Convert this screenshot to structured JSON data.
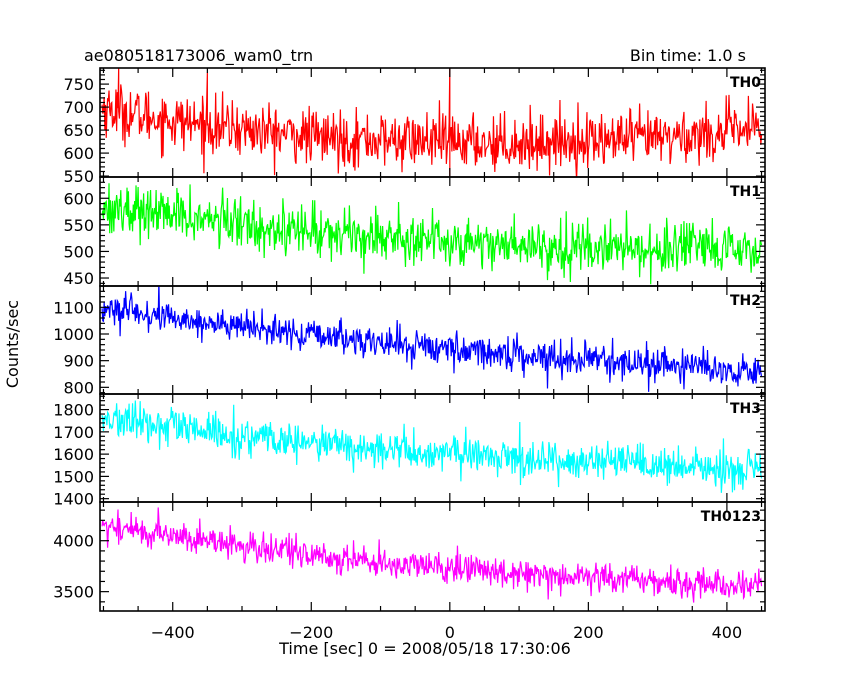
{
  "header": {
    "title": "ae080518173006_wam0_trn",
    "bin_time": "Bin time: 1.0 s"
  },
  "chart_data": {
    "type": "line",
    "xlabel": "Time [sec] 0 = 2008/05/18 17:30:06",
    "ylabel": "Counts/sec",
    "xlim": [
      -505,
      455
    ],
    "xticks": [
      -400,
      -200,
      0,
      200,
      400
    ],
    "grid": false,
    "panels": [
      {
        "name": "TH0",
        "color": "#ff0000",
        "ylim": [
          548,
          785
        ],
        "yticks": [
          550,
          600,
          650,
          700,
          750
        ],
        "trend": [
          [
            -505,
            700
          ],
          [
            -450,
            682
          ],
          [
            -350,
            660
          ],
          [
            -200,
            635
          ],
          [
            -100,
            628
          ],
          [
            0,
            625
          ],
          [
            100,
            622
          ],
          [
            200,
            628
          ],
          [
            300,
            632
          ],
          [
            400,
            645
          ],
          [
            450,
            652
          ]
        ],
        "noise": 30,
        "spikes": [
          [
            -478,
            790
          ],
          [
            -350,
            775
          ],
          [
            0,
            790
          ],
          [
            0,
            548
          ]
        ]
      },
      {
        "name": "TH1",
        "color": "#00ff00",
        "ylim": [
          435,
          640
        ],
        "yticks": [
          450,
          500,
          550,
          600
        ],
        "trend": [
          [
            -505,
            585
          ],
          [
            -400,
            568
          ],
          [
            -300,
            552
          ],
          [
            -200,
            538
          ],
          [
            -100,
            530
          ],
          [
            0,
            520
          ],
          [
            100,
            512
          ],
          [
            200,
            508
          ],
          [
            300,
            505
          ],
          [
            400,
            500
          ],
          [
            450,
            500
          ]
        ],
        "noise": 24,
        "spikes": []
      },
      {
        "name": "TH2",
        "color": "#0000ff",
        "ylim": [
          775,
          1180
        ],
        "yticks": [
          800,
          900,
          1000,
          1100
        ],
        "trend": [
          [
            -505,
            1095
          ],
          [
            -400,
            1060
          ],
          [
            -300,
            1025
          ],
          [
            -200,
            995
          ],
          [
            -100,
            968
          ],
          [
            0,
            945
          ],
          [
            100,
            922
          ],
          [
            200,
            905
          ],
          [
            300,
            885
          ],
          [
            400,
            868
          ],
          [
            450,
            860
          ]
        ],
        "noise": 30,
        "spikes": []
      },
      {
        "name": "TH3",
        "color": "#00ffff",
        "ylim": [
          1385,
          1870
        ],
        "yticks": [
          1400,
          1500,
          1600,
          1700,
          1800
        ],
        "trend": [
          [
            -505,
            1760
          ],
          [
            -400,
            1720
          ],
          [
            -300,
            1675
          ],
          [
            -200,
            1648
          ],
          [
            -100,
            1620
          ],
          [
            0,
            1600
          ],
          [
            100,
            1585
          ],
          [
            200,
            1565
          ],
          [
            300,
            1545
          ],
          [
            400,
            1530
          ],
          [
            450,
            1525
          ]
        ],
        "noise": 42,
        "spikes": []
      },
      {
        "name": "TH0123",
        "color": "#ff00ff",
        "ylim": [
          3310,
          4380
        ],
        "yticks": [
          3500,
          4000
        ],
        "trend": [
          [
            -505,
            4150
          ],
          [
            -400,
            4050
          ],
          [
            -300,
            3950
          ],
          [
            -200,
            3860
          ],
          [
            -100,
            3780
          ],
          [
            0,
            3730
          ],
          [
            100,
            3690
          ],
          [
            200,
            3650
          ],
          [
            300,
            3600
          ],
          [
            400,
            3570
          ],
          [
            450,
            3560
          ]
        ],
        "noise": 75,
        "spikes": []
      }
    ]
  }
}
